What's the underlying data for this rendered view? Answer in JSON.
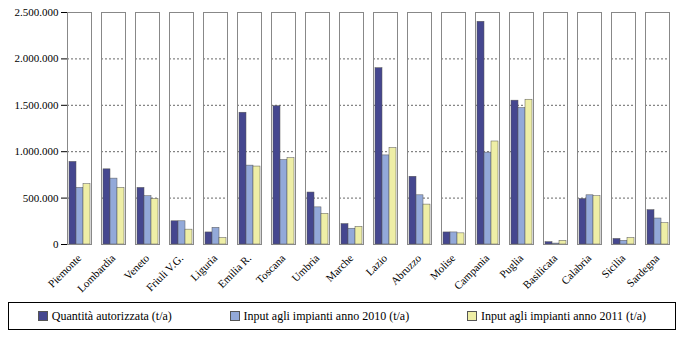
{
  "chart_data": {
    "type": "bar",
    "categories": [
      "Piemonte",
      "Lombardia",
      "Veneto",
      "Friuli V.G.",
      "Liguria",
      "Emilia R.",
      "Toscana",
      "Umbria",
      "Marche",
      "Lazio",
      "Abruzzo",
      "Molise",
      "Campania",
      "Puglia",
      "Basilicata",
      "Calabria",
      "Sicilia",
      "Sardegna"
    ],
    "series": [
      {
        "name": "Quantità autorizzata (t/a)",
        "color": "#45478f",
        "values": [
          890000,
          810000,
          610000,
          250000,
          130000,
          1420000,
          1490000,
          560000,
          220000,
          1900000,
          730000,
          130000,
          2400000,
          1550000,
          25000,
          490000,
          60000,
          370000
        ]
      },
      {
        "name": "Input agli impianti anno 2010 (t/a)",
        "color": "#93a9d9",
        "values": [
          610000,
          710000,
          520000,
          250000,
          180000,
          850000,
          910000,
          400000,
          170000,
          960000,
          530000,
          130000,
          990000,
          1470000,
          10000,
          530000,
          40000,
          280000
        ]
      },
      {
        "name": "Input agli impianti anno 2011 (t/a)",
        "color": "#eeeea6",
        "values": [
          650000,
          610000,
          490000,
          160000,
          70000,
          840000,
          930000,
          330000,
          190000,
          1040000,
          430000,
          120000,
          1110000,
          1560000,
          40000,
          520000,
          70000,
          230000
        ]
      }
    ],
    "ylim": [
      0,
      2500000
    ],
    "yticks": [
      0,
      {
        "value": 500000,
        "label": "500.000"
      },
      {
        "value": 1000000,
        "label": "1.000.000"
      },
      {
        "value": 1500000,
        "label": "1.500.000"
      },
      {
        "value": 2000000,
        "label": "2.000.000"
      },
      {
        "value": 2500000,
        "label": "2.500.000"
      }
    ],
    "grid": true,
    "legend": "bottom"
  }
}
